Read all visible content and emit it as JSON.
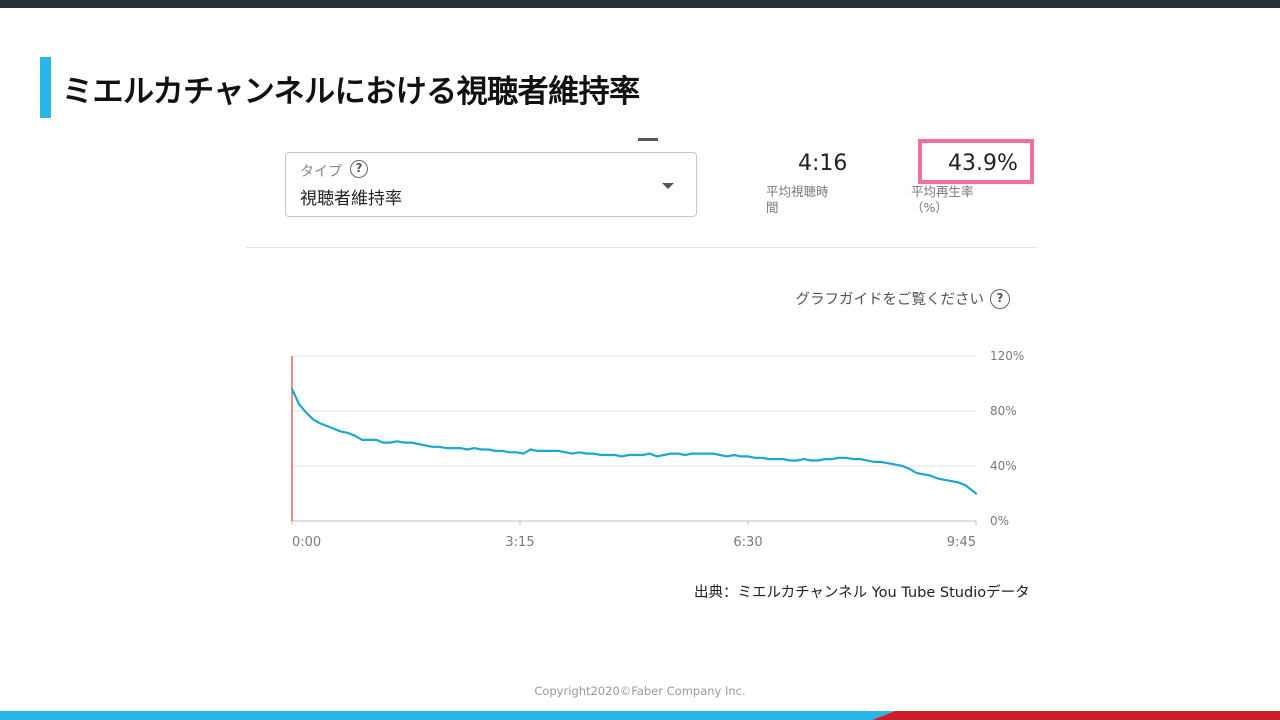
{
  "slide": {
    "title": "ミエルカチャンネルにおける視聴者維持率"
  },
  "type_select": {
    "label": "タイプ",
    "help_glyph": "?",
    "value": "視聴者維持率"
  },
  "metrics": {
    "avg_view_duration": {
      "value": "4:16",
      "label_line1": "平均視聴時",
      "label_line2": "間"
    },
    "avg_percentage": {
      "value": "43.9%",
      "label_line1": "平均再生率",
      "label_line2": "（%）"
    }
  },
  "graph_guide": {
    "text": "グラフガイドをご覧ください",
    "help_glyph": "?"
  },
  "chart_data": {
    "type": "line",
    "x_tick_labels": [
      "0:00",
      "3:15",
      "6:30",
      "9:45"
    ],
    "y_tick_labels": [
      "120%",
      "80%",
      "40%",
      "0%"
    ],
    "ylim": [
      0,
      120
    ],
    "xlim_seconds": [
      0,
      585
    ],
    "grid": true,
    "series": [
      {
        "color": "#1aa7d1",
        "x_seconds": [
          0,
          6,
          12,
          18,
          24,
          30,
          36,
          42,
          48,
          54,
          60,
          66,
          72,
          78,
          84,
          90,
          96,
          102,
          108,
          114,
          120,
          126,
          132,
          138,
          144,
          150,
          156,
          162,
          168,
          174,
          180,
          186,
          192,
          198,
          204,
          210,
          216,
          222,
          228,
          234,
          240,
          246,
          252,
          258,
          264,
          270,
          276,
          282,
          288,
          294,
          300,
          306,
          312,
          318,
          324,
          330,
          336,
          342,
          348,
          354,
          360,
          366,
          372,
          378,
          384,
          390,
          396,
          402,
          408,
          414,
          420,
          426,
          432,
          438,
          444,
          450,
          456,
          462,
          468,
          474,
          480,
          486,
          492,
          498,
          504,
          510,
          516,
          522,
          528,
          534,
          540,
          546,
          552,
          558,
          564,
          570,
          576,
          585
        ],
        "values": [
          96,
          85,
          79,
          74,
          71,
          69,
          67,
          65,
          64,
          62,
          59,
          59,
          59,
          57,
          57,
          58,
          57,
          57,
          56,
          55,
          54,
          54,
          53,
          53,
          53,
          52,
          53,
          52,
          52,
          51,
          51,
          50,
          50,
          49,
          52,
          51,
          51,
          51,
          51,
          50,
          49,
          50,
          49,
          49,
          48,
          48,
          48,
          47,
          48,
          48,
          48,
          49,
          47,
          48,
          49,
          49,
          48,
          49,
          49,
          49,
          49,
          48,
          47,
          48,
          47,
          47,
          46,
          46,
          45,
          45,
          45,
          44,
          44,
          45,
          44,
          44,
          45,
          45,
          46,
          46,
          45,
          45,
          44,
          43,
          43,
          42,
          41,
          40,
          38,
          35,
          34,
          33,
          31,
          30,
          29,
          28,
          26,
          20
        ]
      }
    ],
    "playhead_color": "#e53935"
  },
  "footer": {
    "source": "出典：ミエルカチャンネル You Tube Studioデータ",
    "copyright": "Copyright2020©Faber Company Inc."
  },
  "colors": {
    "accent_blue": "#29b6ea",
    "highlight_pink": "#f2709a",
    "bottom_red": "#cc1f2d",
    "top_bar": "#2b313b"
  }
}
